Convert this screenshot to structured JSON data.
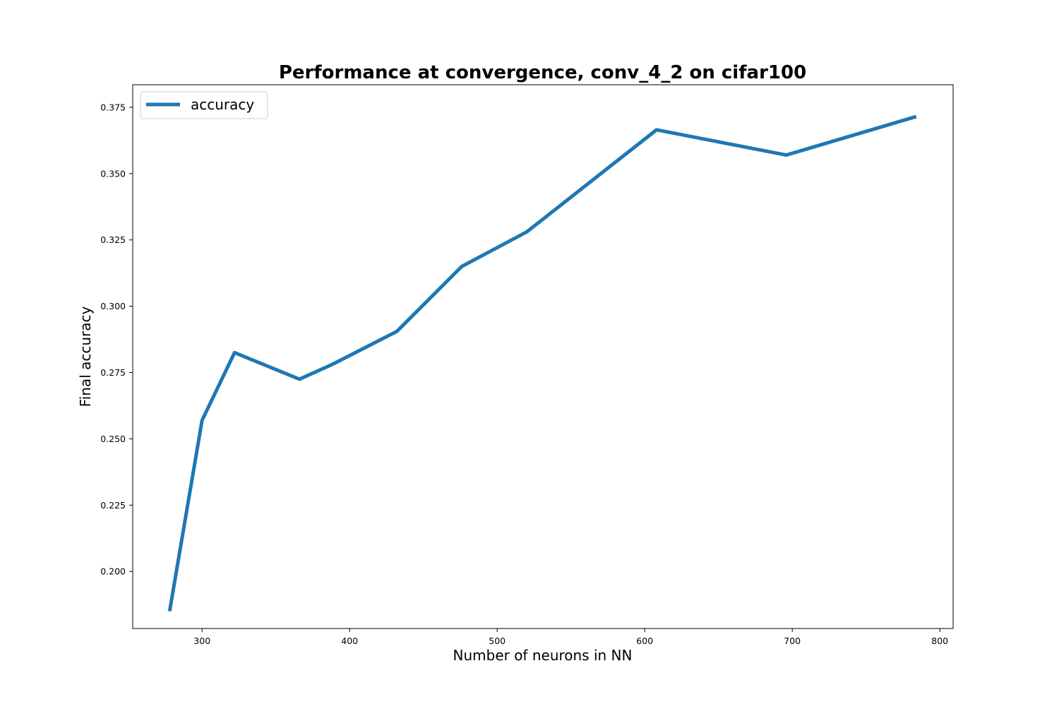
{
  "chart_data": {
    "type": "line",
    "title": "Performance at convergence, conv_4_2 on cifar100",
    "xlabel": "Number of neurons in NN",
    "ylabel": "Final accuracy",
    "xlim": [
      253,
      809
    ],
    "ylim": [
      0.1785,
      0.3835
    ],
    "xticks": [
      300,
      400,
      500,
      600,
      700,
      800
    ],
    "yticks": [
      0.2,
      0.225,
      0.25,
      0.275,
      0.3,
      0.325,
      0.35,
      0.375
    ],
    "xtick_labels": [
      "300",
      "400",
      "500",
      "600",
      "700",
      "800"
    ],
    "ytick_labels": [
      "0.200",
      "0.225",
      "0.250",
      "0.275",
      "0.300",
      "0.325",
      "0.350",
      "0.375"
    ],
    "grid": false,
    "legend_position": "top-left",
    "series": [
      {
        "name": "accuracy",
        "color": "#1f77b4",
        "x": [
          278,
          300,
          322,
          366,
          388,
          432,
          476,
          520,
          608,
          696,
          784
        ],
        "y": [
          0.185,
          0.257,
          0.2825,
          0.2725,
          0.278,
          0.2905,
          0.315,
          0.328,
          0.3665,
          0.357,
          0.3715
        ]
      }
    ]
  }
}
